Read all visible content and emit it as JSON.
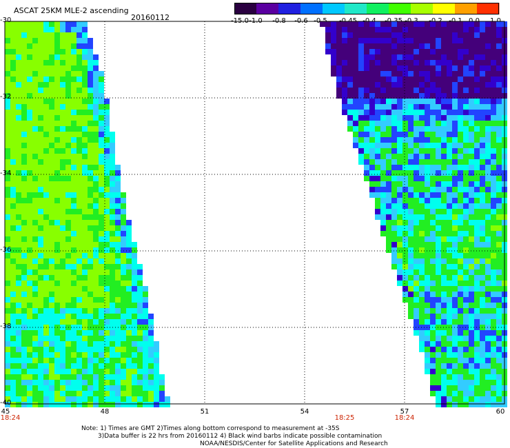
{
  "header": {
    "title": "ASCAT 25KM MLE-2 ascending",
    "date": "20160112"
  },
  "colorbar": {
    "labels": [
      "-15.0",
      "-1.0",
      "-0.8",
      "-0.6",
      "-0.5",
      "-0.45",
      "-0.4",
      "-0.35",
      "-0.3",
      "-0.2",
      "-0.1",
      "0.0",
      "1.0"
    ],
    "colors": [
      "#2a0040",
      "#5a00a0",
      "#2020e0",
      "#0070ff",
      "#00c8ff",
      "#20e8c8",
      "#10f060",
      "#40ff00",
      "#a8ff00",
      "#ffff00",
      "#ffa000",
      "#ff3000"
    ]
  },
  "map": {
    "lat_labels": [
      "-30",
      "-32",
      "-34",
      "-36",
      "-38",
      "-40"
    ],
    "lon_labels": [
      "45",
      "48",
      "51",
      "54",
      "57",
      "60"
    ],
    "time_labels": [
      {
        "text": "18:24",
        "lon": 45
      },
      {
        "text": "18:25",
        "lon": 55.2
      },
      {
        "text": "18:24",
        "lon": 57
      }
    ],
    "swath_colors": {
      "yellowgreen": "#88ff00",
      "green": "#22ee22",
      "cyan": "#00ffee",
      "lightblue": "#33ccff",
      "blue": "#2244ff",
      "navy": "#3300cc",
      "purple": "#44007a"
    }
  },
  "notes": {
    "line1": "Note: 1) Times are GMT 2)Times along bottom correspond to measurement at -35S",
    "line2": "3)Data buffer is 22 hrs from 20160112 4) Black wind barbs indicate possible contamination",
    "line3": "NOAA/NESDIS/Center for Satellite Applications and Research"
  }
}
